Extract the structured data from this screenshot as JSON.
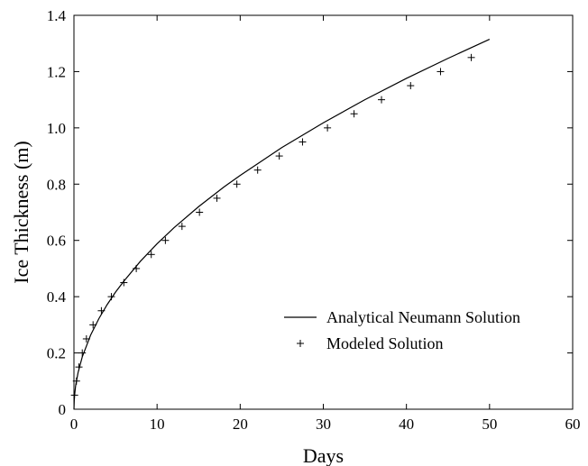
{
  "chart_data": {
    "type": "line",
    "xlabel": "Days",
    "ylabel": "Ice Thickness (m)",
    "xlim": [
      0,
      60
    ],
    "ylim": [
      0,
      1.4
    ],
    "x_ticks": [
      0,
      10,
      20,
      30,
      40,
      50,
      60
    ],
    "y_ticks": [
      0,
      0.2,
      0.4,
      0.6,
      0.8,
      1.0,
      1.2,
      1.4
    ],
    "x_tick_labels": [
      "0",
      "10",
      "20",
      "30",
      "40",
      "50",
      "60"
    ],
    "y_tick_labels": [
      "0",
      "0.2",
      "0.4",
      "0.6",
      "0.8",
      "1.0",
      "1.2",
      "1.4"
    ],
    "grid": false,
    "legend_position": "bottom-right",
    "series": [
      {
        "name": "Analytical Neumann Solution",
        "style": "line",
        "x": [
          0,
          0.05,
          0.2,
          0.5,
          1,
          2,
          3,
          4,
          5,
          6,
          8,
          10,
          12,
          15,
          18,
          20,
          25,
          30,
          35,
          40,
          45,
          50
        ],
        "y": [
          0,
          0.042,
          0.083,
          0.131,
          0.186,
          0.263,
          0.322,
          0.372,
          0.416,
          0.455,
          0.526,
          0.588,
          0.644,
          0.72,
          0.789,
          0.831,
          0.93,
          1.018,
          1.1,
          1.176,
          1.247,
          1.315
        ]
      },
      {
        "name": "Modeled Solution",
        "style": "marker",
        "x": [
          0.07,
          0.3,
          0.6,
          1.0,
          1.5,
          2.3,
          3.3,
          4.5,
          6.0,
          7.5,
          9.3,
          11.0,
          13.0,
          15.1,
          17.2,
          19.6,
          22.1,
          24.7,
          27.5,
          30.5,
          33.7,
          37.0,
          40.5,
          44.1,
          47.8
        ],
        "y": [
          0.05,
          0.1,
          0.15,
          0.2,
          0.25,
          0.3,
          0.35,
          0.4,
          0.45,
          0.5,
          0.55,
          0.6,
          0.65,
          0.7,
          0.75,
          0.8,
          0.85,
          0.9,
          0.95,
          1.0,
          1.05,
          1.1,
          1.15,
          1.2,
          1.25
        ]
      }
    ]
  }
}
